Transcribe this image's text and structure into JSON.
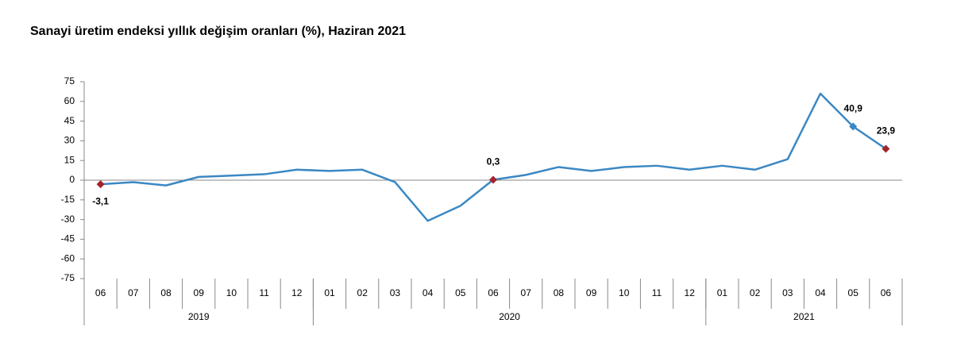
{
  "chart_data": {
    "type": "line",
    "title": "Sanayi üretim endeksi yıllık değişim oranları (%), Haziran 2021",
    "categories": [
      "06",
      "07",
      "08",
      "09",
      "10",
      "11",
      "12",
      "01",
      "02",
      "03",
      "04",
      "05",
      "06",
      "07",
      "08",
      "09",
      "10",
      "11",
      "12",
      "01",
      "02",
      "03",
      "04",
      "05",
      "06"
    ],
    "groups": [
      {
        "label": "2019",
        "count": 7
      },
      {
        "label": "2020",
        "count": 12
      },
      {
        "label": "2021",
        "count": 6
      }
    ],
    "series": [
      {
        "color": "#3b88c3",
        "values": [
          -3.1,
          -1.5,
          -4,
          2.5,
          3.5,
          4.5,
          8,
          7,
          8,
          -1.5,
          -31,
          -19.5,
          0.3,
          4,
          10,
          7,
          10,
          11,
          8,
          11,
          8,
          16,
          66,
          40.9,
          23.9
        ],
        "value_labels": [
          "-3,1",
          null,
          null,
          null,
          null,
          null,
          null,
          null,
          null,
          null,
          null,
          null,
          "0,3",
          null,
          null,
          null,
          null,
          null,
          null,
          null,
          null,
          null,
          null,
          "40,9",
          "23,9"
        ],
        "marker_colors": [
          "#a3242b",
          null,
          null,
          null,
          null,
          null,
          null,
          null,
          null,
          null,
          null,
          null,
          "#a3242b",
          null,
          null,
          null,
          null,
          null,
          null,
          null,
          null,
          null,
          null,
          "#3b88c3",
          "#a3242b"
        ]
      }
    ],
    "ylim": [
      -75,
      75
    ],
    "yticks": [
      -75,
      -60,
      -45,
      -30,
      -15,
      0,
      15,
      30,
      45,
      60,
      75
    ]
  }
}
